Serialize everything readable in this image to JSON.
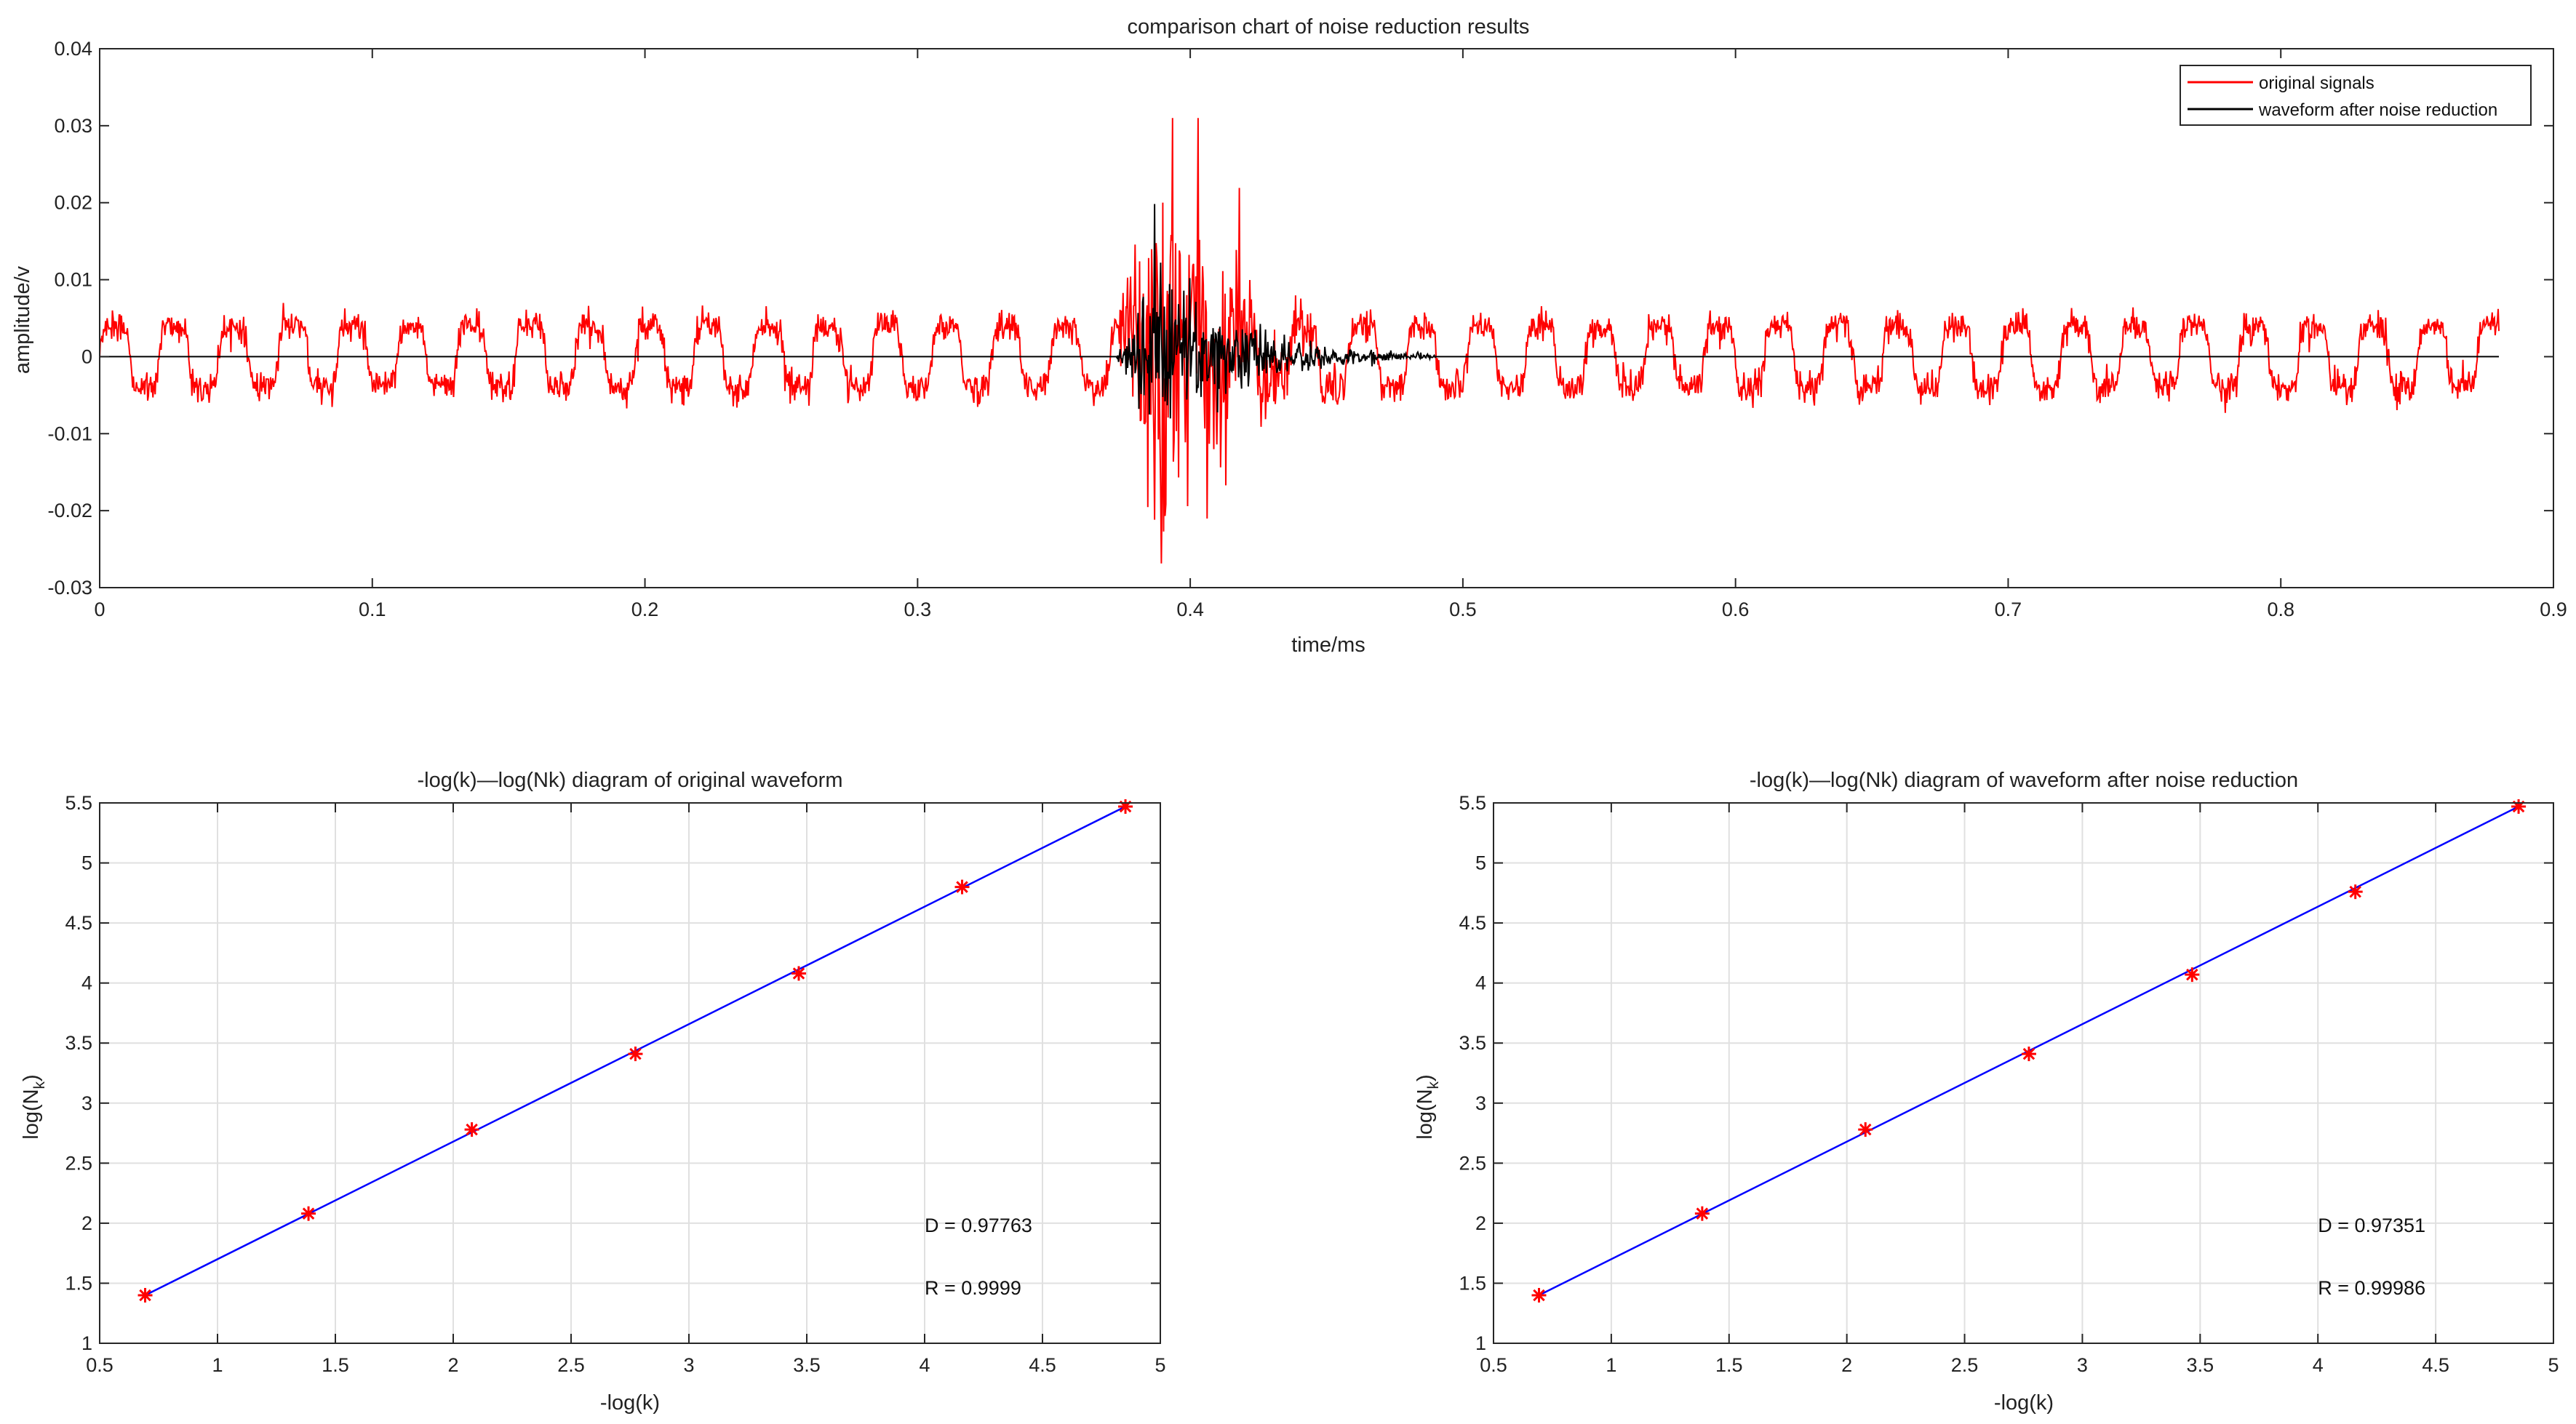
{
  "colors": {
    "original": "#ff0000",
    "denoised": "#000000",
    "fit_line": "#0000ff",
    "marker": "#ff0000",
    "grid": "#e0e0e0",
    "axis": "#262626"
  },
  "chart_data": [
    {
      "id": "waveform",
      "type": "line",
      "title": "comparison chart of noise reduction results",
      "xlabel": "time/ms",
      "ylabel": "amplitude/v",
      "xlim": [
        0,
        0.9
      ],
      "ylim": [
        -0.03,
        0.04
      ],
      "xticks": [
        0,
        0.1,
        0.2,
        0.3,
        0.4,
        0.5,
        0.6,
        0.7,
        0.8,
        0.9
      ],
      "yticks": [
        -0.03,
        -0.02,
        -0.01,
        0,
        0.01,
        0.02,
        0.03,
        0.04
      ],
      "grid": false,
      "legend_position": "top-right",
      "series": [
        {
          "name": "original signals",
          "color": "#ff0000",
          "x_range": [
            0,
            0.88
          ],
          "baseline_oscillation": {
            "period_ms": 0.0218,
            "amplitude_v": 0.005,
            "noise_v": 0.001
          },
          "burst": {
            "start_ms": 0.373,
            "peak_ms": 0.398,
            "end_ms": 0.475,
            "max_v": 0.031,
            "min_v": -0.027
          }
        },
        {
          "name": "waveform after noise reduction",
          "color": "#000000",
          "x_range": [
            0,
            0.88
          ],
          "baseline_v": 0,
          "burst": {
            "start_ms": 0.373,
            "peak_ms": 0.39,
            "end_ms": 0.49,
            "max_v": 0.02,
            "min_v": -0.025
          }
        }
      ]
    },
    {
      "id": "fractal_original",
      "type": "scatter",
      "title": "-log(k)—log(Nk) diagram of original waveform",
      "xlabel": "-log(k)",
      "ylabel_main": "log(N",
      "ylabel_sub": "k",
      "ylabel_tail": ")",
      "xlim": [
        0.5,
        5
      ],
      "ylim": [
        1,
        5.5
      ],
      "xticks": [
        0.5,
        1,
        1.5,
        2,
        2.5,
        3,
        3.5,
        4,
        4.5,
        5
      ],
      "yticks": [
        1,
        1.5,
        2,
        2.5,
        3,
        3.5,
        4,
        4.5,
        5,
        5.5
      ],
      "grid": true,
      "x": [
        0.693,
        1.386,
        2.079,
        2.773,
        3.466,
        4.159,
        4.852
      ],
      "y": [
        1.4,
        2.08,
        2.78,
        3.41,
        4.08,
        4.8,
        5.47
      ],
      "fit_line": {
        "x": [
          0.693,
          4.852
        ],
        "y": [
          1.4,
          5.47
        ]
      },
      "annotations": [
        {
          "text": "D = 0.97763",
          "x": 4.0,
          "y": 1.98
        },
        {
          "text": "R = 0.9999",
          "x": 4.0,
          "y": 1.46
        }
      ]
    },
    {
      "id": "fractal_denoised",
      "type": "scatter",
      "title": "-log(k)—log(Nk) diagram of waveform after noise reduction",
      "xlabel": "-log(k)",
      "ylabel_main": "log(N",
      "ylabel_sub": "k",
      "ylabel_tail": ")",
      "xlim": [
        0.5,
        5
      ],
      "ylim": [
        1,
        5.5
      ],
      "xticks": [
        0.5,
        1,
        1.5,
        2,
        2.5,
        3,
        3.5,
        4,
        4.5,
        5
      ],
      "yticks": [
        1,
        1.5,
        2,
        2.5,
        3,
        3.5,
        4,
        4.5,
        5,
        5.5
      ],
      "grid": true,
      "x": [
        0.693,
        1.386,
        2.079,
        2.773,
        3.466,
        4.159,
        4.852
      ],
      "y": [
        1.4,
        2.08,
        2.78,
        3.41,
        4.07,
        4.76,
        5.47
      ],
      "fit_line": {
        "x": [
          0.693,
          4.852
        ],
        "y": [
          1.4,
          5.47
        ]
      },
      "annotations": [
        {
          "text": "D = 0.97351",
          "x": 4.0,
          "y": 1.98
        },
        {
          "text": "R = 0.99986",
          "x": 4.0,
          "y": 1.46
        }
      ]
    }
  ]
}
